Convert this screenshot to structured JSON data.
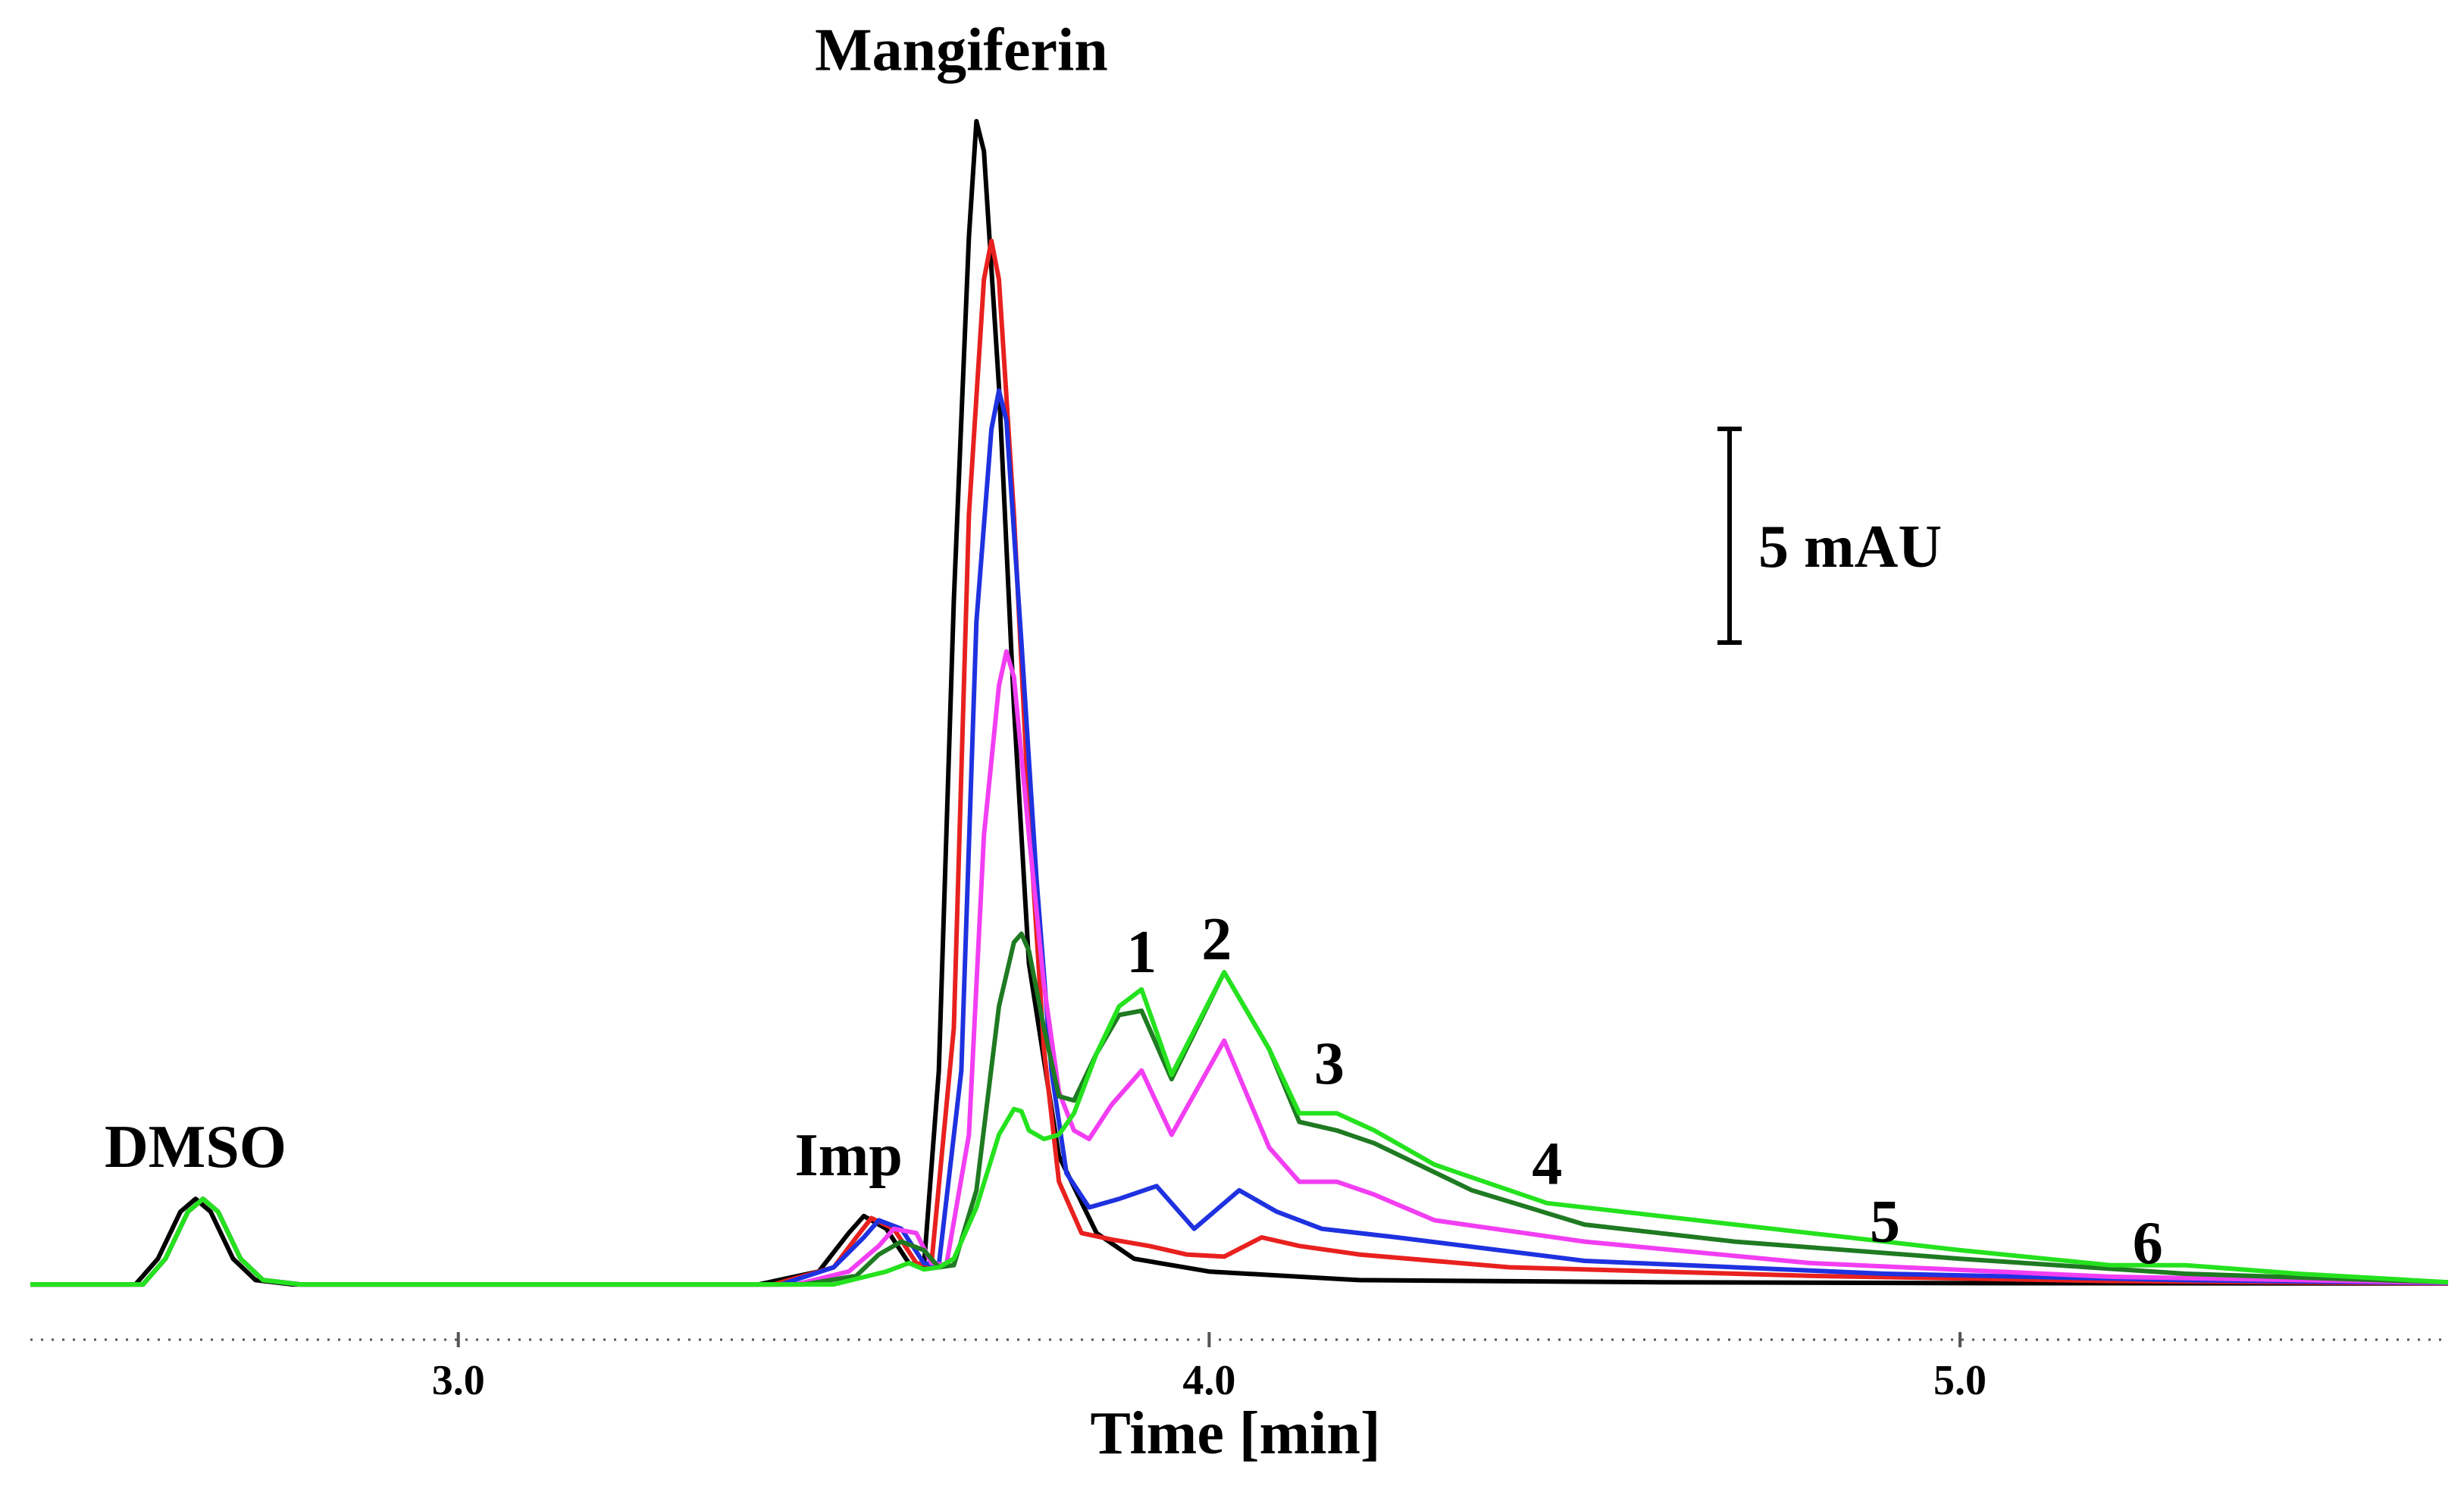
{
  "chart_data": {
    "type": "line",
    "title": "",
    "xlabel": "Time [min]",
    "ylabel": "",
    "x_range": [
      2.43,
      5.65
    ],
    "y_range": [
      -0.3,
      27.2
    ],
    "x_ticks": [
      3.0,
      4.0,
      5.0
    ],
    "x_tick_labels": [
      "3.0",
      "4.0",
      "5.0"
    ],
    "grid": false,
    "scale_bar": {
      "label": "5 mAU",
      "value_mau": 5
    },
    "colors": {
      "black": "#000000",
      "red": "#e8211f",
      "blue": "#1f32e0",
      "magenta": "#f23ef2",
      "darkgreen": "#1f7a22",
      "green": "#25e21e"
    },
    "peak_labels": [
      {
        "text": "DMSO",
        "x": 2.65,
        "y": 2.75
      },
      {
        "text": "Imp",
        "x": 3.52,
        "y": 2.55
      },
      {
        "text": "Mangiferin",
        "x": 3.67,
        "y": 28.4
      },
      {
        "text": "1",
        "x": 3.91,
        "y": 7.3
      },
      {
        "text": "2",
        "x": 4.01,
        "y": 7.6
      },
      {
        "text": "3",
        "x": 4.16,
        "y": 4.7
      },
      {
        "text": "4",
        "x": 4.45,
        "y": 2.35
      },
      {
        "text": "5",
        "x": 4.9,
        "y": 1.0
      },
      {
        "text": "6",
        "x": 5.25,
        "y": 0.5
      }
    ],
    "series": [
      {
        "name": "black",
        "color": "black",
        "x": [
          2.43,
          2.57,
          2.6,
          2.63,
          2.65,
          2.67,
          2.7,
          2.73,
          2.78,
          3.4,
          3.48,
          3.52,
          3.54,
          3.57,
          3.6,
          3.62,
          3.64,
          3.66,
          3.68,
          3.69,
          3.7,
          3.72,
          3.74,
          3.76,
          3.8,
          3.85,
          3.9,
          4.0,
          4.2,
          4.6,
          5.0,
          5.65
        ],
        "y": [
          0,
          0,
          0.6,
          1.7,
          2.0,
          1.7,
          0.6,
          0.1,
          0,
          0,
          0.3,
          1.2,
          1.6,
          1.3,
          0.5,
          0.4,
          5.0,
          16.0,
          24.5,
          27.2,
          26.5,
          21.0,
          13.5,
          7.5,
          3.0,
          1.2,
          0.6,
          0.3,
          0.1,
          0.05,
          0.03,
          0.02
        ]
      },
      {
        "name": "red",
        "color": "red",
        "x": [
          2.43,
          2.58,
          2.61,
          2.64,
          2.66,
          2.68,
          2.71,
          2.74,
          2.79,
          3.42,
          3.5,
          3.53,
          3.55,
          3.58,
          3.61,
          3.63,
          3.66,
          3.68,
          3.7,
          3.71,
          3.72,
          3.74,
          3.76,
          3.78,
          3.8,
          3.83,
          3.87,
          3.92,
          3.97,
          4.02,
          4.07,
          4.12,
          4.2,
          4.4,
          4.8,
          5.2,
          5.65
        ],
        "y": [
          0,
          0,
          0.6,
          1.7,
          2.0,
          1.7,
          0.6,
          0.1,
          0,
          0,
          0.4,
          1.1,
          1.55,
          1.3,
          0.5,
          0.45,
          6.0,
          18.0,
          23.5,
          24.4,
          23.5,
          18.0,
          11.0,
          5.5,
          2.4,
          1.2,
          1.05,
          0.9,
          0.7,
          0.65,
          1.1,
          0.9,
          0.7,
          0.4,
          0.2,
          0.08,
          0.02
        ]
      },
      {
        "name": "blue",
        "color": "blue",
        "x": [
          2.43,
          2.58,
          2.61,
          2.64,
          2.66,
          2.68,
          2.71,
          2.74,
          2.79,
          3.43,
          3.5,
          3.54,
          3.56,
          3.59,
          3.62,
          3.64,
          3.67,
          3.69,
          3.71,
          3.72,
          3.73,
          3.75,
          3.77,
          3.79,
          3.81,
          3.84,
          3.88,
          3.93,
          3.98,
          4.04,
          4.09,
          4.15,
          4.25,
          4.5,
          4.9,
          5.3,
          5.65
        ],
        "y": [
          0,
          0,
          0.6,
          1.7,
          2.0,
          1.7,
          0.6,
          0.1,
          0,
          0,
          0.4,
          1.1,
          1.5,
          1.3,
          0.5,
          0.45,
          5.0,
          15.5,
          20.0,
          20.9,
          20.2,
          15.0,
          9.5,
          5.0,
          2.6,
          1.8,
          2.0,
          2.3,
          1.3,
          2.2,
          1.7,
          1.3,
          1.1,
          0.55,
          0.25,
          0.1,
          0.03
        ]
      },
      {
        "name": "magenta",
        "color": "magenta",
        "x": [
          2.43,
          2.58,
          2.61,
          2.64,
          2.66,
          2.68,
          2.71,
          2.74,
          2.79,
          3.45,
          3.52,
          3.56,
          3.58,
          3.61,
          3.63,
          3.65,
          3.68,
          3.7,
          3.72,
          3.73,
          3.74,
          3.76,
          3.78,
          3.8,
          3.82,
          3.84,
          3.87,
          3.91,
          3.95,
          4.02,
          4.08,
          4.12,
          4.17,
          4.22,
          4.3,
          4.5,
          4.8,
          5.2,
          5.65
        ],
        "y": [
          0,
          0,
          0.6,
          1.7,
          2.0,
          1.7,
          0.6,
          0.1,
          0,
          0,
          0.3,
          0.9,
          1.3,
          1.2,
          0.5,
          0.45,
          3.5,
          10.5,
          14.0,
          14.8,
          14.2,
          10.5,
          7.0,
          4.5,
          3.6,
          3.4,
          4.2,
          5.0,
          3.5,
          5.7,
          3.2,
          2.4,
          2.4,
          2.1,
          1.5,
          1.0,
          0.5,
          0.18,
          0.04
        ]
      },
      {
        "name": "darkgreen",
        "color": "darkgreen",
        "x": [
          2.43,
          2.58,
          2.61,
          2.64,
          2.66,
          2.68,
          2.71,
          2.74,
          2.79,
          3.46,
          3.53,
          3.56,
          3.59,
          3.62,
          3.64,
          3.66,
          3.69,
          3.72,
          3.74,
          3.75,
          3.76,
          3.78,
          3.8,
          3.82,
          3.85,
          3.88,
          3.91,
          3.95,
          4.02,
          4.08,
          4.12,
          4.17,
          4.22,
          4.35,
          4.5,
          4.7,
          5.0,
          5.3,
          5.65
        ],
        "y": [
          0,
          0,
          0.6,
          1.7,
          2.0,
          1.7,
          0.6,
          0.1,
          0,
          0,
          0.2,
          0.7,
          1.0,
          0.8,
          0.4,
          0.45,
          2.2,
          6.5,
          8.0,
          8.2,
          7.8,
          6.0,
          4.4,
          4.3,
          5.4,
          6.3,
          6.4,
          4.8,
          7.3,
          5.5,
          3.8,
          3.6,
          3.3,
          2.2,
          1.4,
          1.0,
          0.6,
          0.25,
          0.05
        ]
      },
      {
        "name": "green",
        "color": "green",
        "x": [
          2.43,
          2.58,
          2.61,
          2.64,
          2.66,
          2.68,
          2.71,
          2.74,
          2.79,
          3.5,
          3.57,
          3.6,
          3.62,
          3.64,
          3.66,
          3.69,
          3.72,
          3.74,
          3.75,
          3.76,
          3.78,
          3.8,
          3.82,
          3.85,
          3.88,
          3.91,
          3.95,
          4.02,
          4.08,
          4.12,
          4.17,
          4.22,
          4.3,
          4.45,
          4.6,
          4.8,
          5.0,
          5.2,
          5.3,
          5.45,
          5.65
        ],
        "y": [
          0,
          0,
          0.6,
          1.7,
          2.0,
          1.7,
          0.6,
          0.1,
          0,
          0,
          0.3,
          0.5,
          0.35,
          0.4,
          0.6,
          1.8,
          3.5,
          4.1,
          4.05,
          3.6,
          3.4,
          3.5,
          4.0,
          5.4,
          6.5,
          6.9,
          4.9,
          7.3,
          5.5,
          4.0,
          4.0,
          3.6,
          2.8,
          1.9,
          1.6,
          1.2,
          0.8,
          0.45,
          0.45,
          0.25,
          0.05
        ]
      }
    ]
  }
}
